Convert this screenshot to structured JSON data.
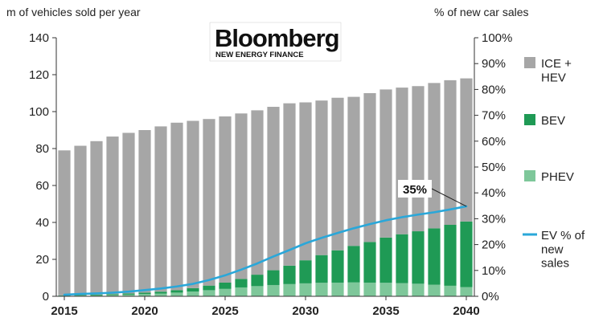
{
  "brand": {
    "name": "Bloomberg",
    "sub": "NEW ENERGY FINANCE"
  },
  "colors": {
    "ice": "#a6a6a6",
    "bev": "#1f9a55",
    "phev": "#7ec79a",
    "ev_line": "#2aa7d9",
    "axis": "#333333"
  },
  "chart_data": {
    "type": "bar",
    "stacked": true,
    "categories": [
      "2015",
      "2016",
      "2017",
      "2018",
      "2019",
      "2020",
      "2021",
      "2022",
      "2023",
      "2024",
      "2025",
      "2026",
      "2027",
      "2028",
      "2029",
      "2030",
      "2031",
      "2032",
      "2033",
      "2034",
      "2035",
      "2036",
      "2037",
      "2038",
      "2039",
      "2040"
    ],
    "x_tick_labels": [
      "2015",
      "2020",
      "2025",
      "2030",
      "2035",
      "2040"
    ],
    "ylabel_left": "m of vehicles sold per year",
    "ylabel_right": "% of new car sales",
    "ylim_left": [
      0,
      140
    ],
    "yticks_left": [
      "0",
      "20",
      "40",
      "60",
      "80",
      "100",
      "120",
      "140"
    ],
    "ylim_right": [
      0,
      100
    ],
    "yticks_right": [
      "0%",
      "10%",
      "20%",
      "30%",
      "40%",
      "50%",
      "60%",
      "70%",
      "80%",
      "90%",
      "100%"
    ],
    "grid": false,
    "legend_position": "right",
    "series": [
      {
        "name": "PHEV",
        "kind": "bar",
        "values": [
          0.3,
          0.4,
          0.5,
          0.7,
          0.9,
          1.2,
          1.5,
          2.0,
          2.6,
          3.3,
          4.0,
          4.8,
          5.5,
          6.1,
          6.6,
          7.0,
          7.3,
          7.4,
          7.5,
          7.4,
          7.3,
          7.1,
          6.8,
          6.3,
          5.7,
          5.0
        ]
      },
      {
        "name": "BEV",
        "kind": "bar",
        "values": [
          0.2,
          0.3,
          0.4,
          0.5,
          0.6,
          0.8,
          1.0,
          1.3,
          1.8,
          2.5,
          3.4,
          4.6,
          6.2,
          8.0,
          10.0,
          12.5,
          15.0,
          17.5,
          19.8,
          22.0,
          24.5,
          26.5,
          28.4,
          30.5,
          33.0,
          35.5
        ]
      },
      {
        "name": "ICE +\nHEV",
        "kind": "bar",
        "values": [
          78.5,
          80.8,
          83.1,
          85.3,
          87.0,
          88.0,
          89.5,
          90.7,
          90.6,
          90.2,
          90.0,
          89.6,
          89.0,
          88.5,
          87.9,
          85.5,
          83.7,
          82.6,
          80.7,
          80.6,
          80.2,
          79.4,
          78.6,
          78.7,
          78.3,
          77.5
        ]
      },
      {
        "name": "EV % of\nnew\nsales",
        "kind": "line",
        "axis": "right",
        "values": [
          0.6,
          0.9,
          1.1,
          1.4,
          1.8,
          2.4,
          3.0,
          3.8,
          4.8,
          6.3,
          8.1,
          10.3,
          12.7,
          15.4,
          17.9,
          20.5,
          22.6,
          24.5,
          26.3,
          27.9,
          29.4,
          30.6,
          31.6,
          32.5,
          33.6,
          34.8
        ]
      }
    ],
    "annotations": [
      {
        "text": "35%",
        "category": "2040",
        "series": "EV % of\nnew\nsales"
      }
    ]
  }
}
